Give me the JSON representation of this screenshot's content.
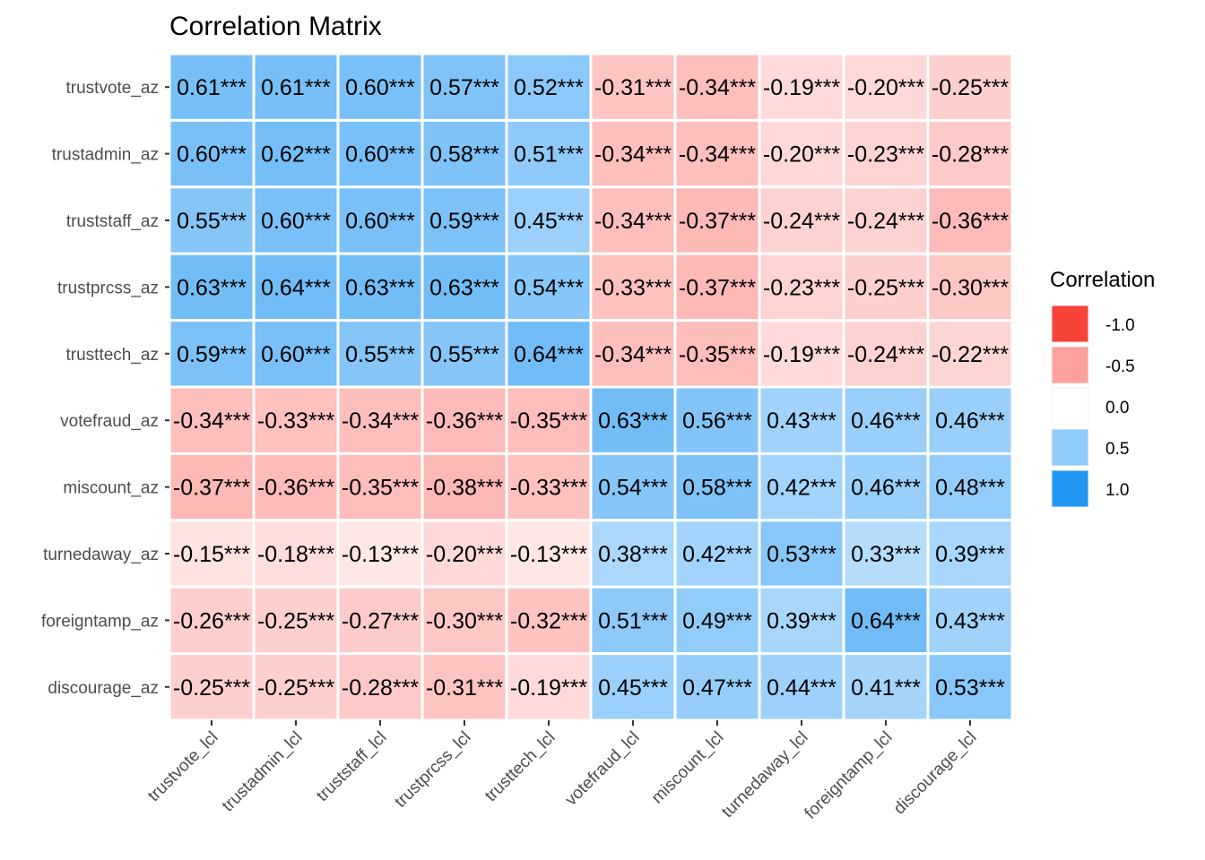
{
  "chart_data": {
    "type": "heatmap",
    "title": "Correlation Matrix",
    "rows": [
      "trustvote_az",
      "trustadmin_az",
      "truststaff_az",
      "trustprcss_az",
      "trusttech_az",
      "votefraud_az",
      "miscount_az",
      "turnedaway_az",
      "foreigntamp_az",
      "discourage_az"
    ],
    "columns": [
      "trustvote_lcl",
      "trustadmin_lcl",
      "truststaff_lcl",
      "trustprcss_lcl",
      "trusttech_lcl",
      "votefraud_lcl",
      "miscount_lcl",
      "turnedaway_lcl",
      "foreigntamp_lcl",
      "discourage_lcl"
    ],
    "values": [
      [
        0.61,
        0.61,
        0.6,
        0.57,
        0.52,
        -0.31,
        -0.34,
        -0.19,
        -0.2,
        -0.25
      ],
      [
        0.6,
        0.62,
        0.6,
        0.58,
        0.51,
        -0.34,
        -0.34,
        -0.2,
        -0.23,
        -0.28
      ],
      [
        0.55,
        0.6,
        0.6,
        0.59,
        0.45,
        -0.34,
        -0.37,
        -0.24,
        -0.24,
        -0.36
      ],
      [
        0.63,
        0.64,
        0.63,
        0.63,
        0.54,
        -0.33,
        -0.37,
        -0.23,
        -0.25,
        -0.3
      ],
      [
        0.59,
        0.6,
        0.55,
        0.55,
        0.64,
        -0.34,
        -0.35,
        -0.19,
        -0.24,
        -0.22
      ],
      [
        -0.34,
        -0.33,
        -0.34,
        -0.36,
        -0.35,
        0.63,
        0.56,
        0.43,
        0.46,
        0.46
      ],
      [
        -0.37,
        -0.36,
        -0.35,
        -0.38,
        -0.33,
        0.54,
        0.58,
        0.42,
        0.46,
        0.48
      ],
      [
        -0.15,
        -0.18,
        -0.13,
        -0.2,
        -0.13,
        0.38,
        0.42,
        0.53,
        0.33,
        0.39
      ],
      [
        -0.26,
        -0.25,
        -0.27,
        -0.3,
        -0.32,
        0.51,
        0.49,
        0.39,
        0.64,
        0.43
      ],
      [
        -0.25,
        -0.25,
        -0.28,
        -0.31,
        -0.19,
        0.45,
        0.47,
        0.44,
        0.41,
        0.53
      ]
    ],
    "labels": [
      [
        "0.61***",
        "0.61***",
        "0.60***",
        "0.57***",
        "0.52***",
        "-0.31***",
        "-0.34***",
        "-0.19***",
        "-0.20***",
        "-0.25***"
      ],
      [
        "0.60***",
        "0.62***",
        "0.60***",
        "0.58***",
        "0.51***",
        "-0.34***",
        "-0.34***",
        "-0.20***",
        "-0.23***",
        "-0.28***"
      ],
      [
        "0.55***",
        "0.60***",
        "0.60***",
        "0.59***",
        "0.45***",
        "-0.34***",
        "-0.37***",
        "-0.24***",
        "-0.24***",
        "-0.36***"
      ],
      [
        "0.63***",
        "0.64***",
        "0.63***",
        "0.63***",
        "0.54***",
        "-0.33***",
        "-0.37***",
        "-0.23***",
        "-0.25***",
        "-0.30***"
      ],
      [
        "0.59***",
        "0.60***",
        "0.55***",
        "0.55***",
        "0.64***",
        "-0.34***",
        "-0.35***",
        "-0.19***",
        "-0.24***",
        "-0.22***"
      ],
      [
        "-0.34***",
        "-0.33***",
        "-0.34***",
        "-0.36***",
        "-0.35***",
        "0.63***",
        "0.56***",
        "0.43***",
        "0.46***",
        "0.46***"
      ],
      [
        "-0.37***",
        "-0.36***",
        "-0.35***",
        "-0.38***",
        "-0.33***",
        "0.54***",
        "0.58***",
        "0.42***",
        "0.46***",
        "0.48***"
      ],
      [
        "-0.15***",
        "-0.18***",
        "-0.13***",
        "-0.20***",
        "-0.13***",
        "0.38***",
        "0.42***",
        "0.53***",
        "0.33***",
        "0.39***"
      ],
      [
        "-0.26***",
        "-0.25***",
        "-0.27***",
        "-0.30***",
        "-0.32***",
        "0.51***",
        "0.49***",
        "0.39***",
        "0.64***",
        "0.43***"
      ],
      [
        "-0.25***",
        "-0.25***",
        "-0.28***",
        "-0.31***",
        "-0.19***",
        "0.45***",
        "0.47***",
        "0.44***",
        "0.41***",
        "0.53***"
      ]
    ],
    "color_scale": {
      "low": "#F8433A",
      "mid": "#FFFFFF",
      "high": "#2196F3",
      "limits": [
        -1,
        1
      ]
    },
    "legend": {
      "title": "Correlation",
      "position": "right",
      "breaks": [
        -1.0,
        -0.5,
        0.0,
        0.5,
        1.0
      ],
      "break_labels": [
        "-1.0",
        "-0.5",
        "0.0",
        "0.5",
        "1.0"
      ]
    },
    "grid": false
  }
}
